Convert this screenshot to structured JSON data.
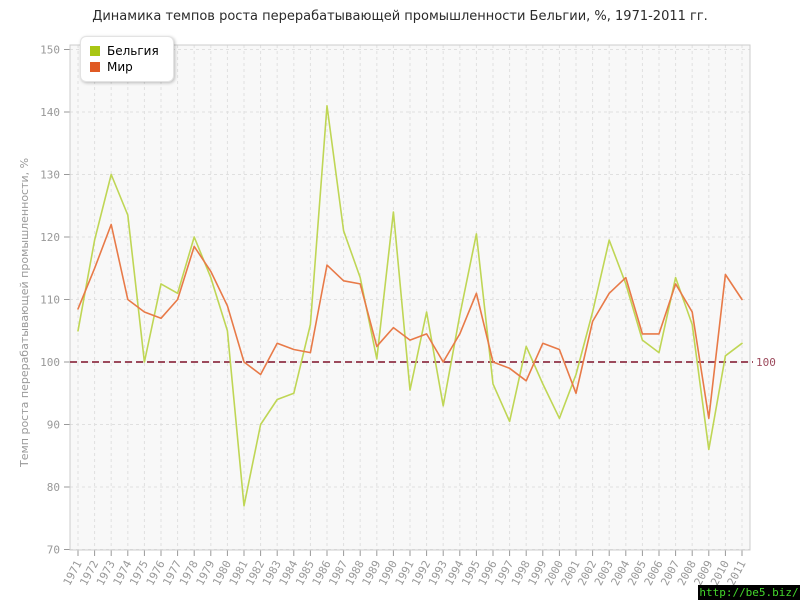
{
  "title": "Динамика темпов роста перерабатывающей промышленности Бельгии, %, 1971-2011 гг.",
  "watermark": {
    "text": "http://be5.biz/",
    "color": "#44d62c",
    "bg": "#000000"
  },
  "chart_data": {
    "type": "line",
    "title": "Динамика темпов роста перерабатывающей промышленности Бельгии, %, 1971-2011 гг.",
    "xlabel": "",
    "ylabel": "Темп роста перерабатывающей промышленности, %",
    "ylim": [
      70,
      150
    ],
    "yticks": [
      70,
      80,
      90,
      100,
      110,
      120,
      130,
      140,
      150
    ],
    "grid": true,
    "legend_position": "top-left",
    "guide": {
      "value": 100,
      "label": "100",
      "color": "#9c4a5c"
    },
    "x": [
      1971,
      1972,
      1973,
      1974,
      1975,
      1976,
      1977,
      1978,
      1979,
      1980,
      1981,
      1982,
      1983,
      1984,
      1985,
      1986,
      1987,
      1988,
      1989,
      1990,
      1991,
      1992,
      1993,
      1994,
      1995,
      1996,
      1997,
      1998,
      1999,
      2000,
      2001,
      2002,
      2003,
      2004,
      2005,
      2006,
      2007,
      2008,
      2009,
      2010,
      2011
    ],
    "series": [
      {
        "name": "Бельгия",
        "color": "#bfd655",
        "swatch": "#a9c614",
        "values": [
          105,
          119.5,
          130,
          123.5,
          100,
          112.5,
          111,
          120,
          113.5,
          105,
          77,
          90,
          94,
          95,
          106,
          141,
          121,
          113.5,
          100.5,
          124,
          95.5,
          108,
          93,
          107.5,
          120.5,
          96.5,
          90.5,
          102.5,
          96.5,
          91,
          98,
          108,
          119.5,
          112.5,
          103.5,
          101.5,
          113.5,
          106,
          86,
          101,
          103
        ]
      },
      {
        "name": "Мир",
        "color": "#e87a48",
        "swatch": "#e05a24",
        "values": [
          108.5,
          115,
          122,
          110,
          108,
          107,
          110,
          118.5,
          114.5,
          109,
          100,
          98,
          103,
          102,
          101.5,
          115.5,
          113,
          112.5,
          102.5,
          105.5,
          103.5,
          104.5,
          100,
          104.5,
          111,
          100,
          99,
          97,
          103,
          102,
          95,
          106.5,
          111,
          113.5,
          104.5,
          104.5,
          112.5,
          108,
          91,
          114,
          110
        ]
      }
    ],
    "style": {
      "plot_bg": "#f8f8f8",
      "grid_color": "#e0e0e0",
      "border_color": "#cccccc",
      "tick_color": "#999999"
    }
  }
}
